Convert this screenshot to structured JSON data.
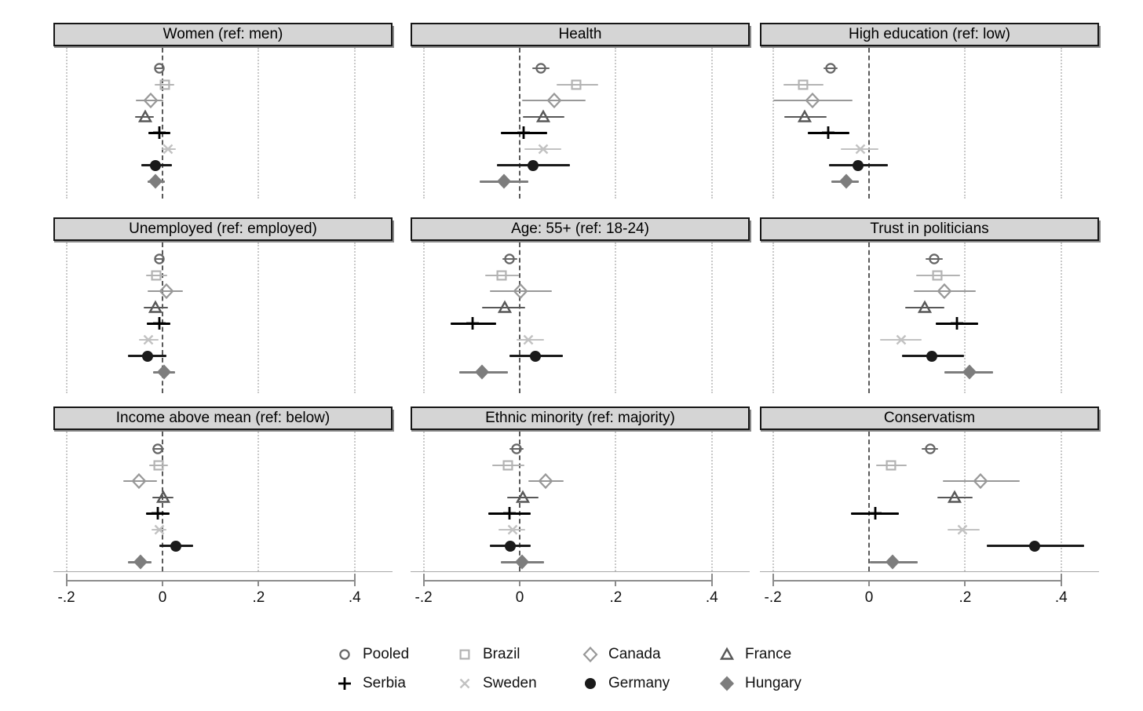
{
  "chart_data": {
    "type": "scatter",
    "subtype": "forest-coefficient-plot-small-multiples",
    "description": "3x3 grid of coefficient plots with point estimates and confidence intervals for 8 samples",
    "x_axis": {
      "tick_values": [
        -0.2,
        0,
        0.2,
        0.4
      ],
      "tick_labels": [
        "-.2",
        "0",
        ".2",
        ".4"
      ],
      "range": [
        -0.225,
        0.48
      ],
      "zero_reference_line": "dashed",
      "gridlines_at": [
        -0.2,
        0.2,
        0.4
      ],
      "gridline_style": "dotted"
    },
    "series": [
      {
        "name": "Pooled",
        "marker": "circle-open",
        "color": "#666666",
        "line_width": 2
      },
      {
        "name": "Brazil",
        "marker": "square-open",
        "color": "#b3b3b3",
        "line_width": 2
      },
      {
        "name": "Canada",
        "marker": "diamond-open",
        "color": "#989898",
        "line_width": 2
      },
      {
        "name": "France",
        "marker": "triangle-open",
        "color": "#585858",
        "line_width": 2.5
      },
      {
        "name": "Serbia",
        "marker": "plus",
        "color": "#000000",
        "line_width": 3
      },
      {
        "name": "Sweden",
        "marker": "x",
        "color": "#c2c2c2",
        "line_width": 2
      },
      {
        "name": "Germany",
        "marker": "circle-filled",
        "color": "#1a1a1a",
        "line_width": 3
      },
      {
        "name": "Hungary",
        "marker": "diamond-filled",
        "color": "#7d7d7d",
        "line_width": 3
      }
    ],
    "value_format": "[estimate, ci_low, ci_high]",
    "panels": [
      {
        "title": "Women (ref: men)",
        "values": [
          [
            -0.005,
            -0.013,
            0.004
          ],
          [
            0.007,
            -0.015,
            0.026
          ],
          [
            -0.023,
            -0.054,
            0.003
          ],
          [
            -0.034,
            -0.055,
            -0.016
          ],
          [
            -0.005,
            -0.028,
            0.018
          ],
          [
            0.013,
            0.0,
            0.03
          ],
          [
            -0.013,
            -0.042,
            0.022
          ],
          [
            -0.013,
            -0.03,
            0.006
          ]
        ]
      },
      {
        "title": "Health",
        "values": [
          [
            0.045,
            0.027,
            0.063
          ],
          [
            0.12,
            0.078,
            0.165
          ],
          [
            0.073,
            0.007,
            0.139
          ],
          [
            0.051,
            0.008,
            0.094
          ],
          [
            0.01,
            -0.038,
            0.059
          ],
          [
            0.051,
            0.012,
            0.089
          ],
          [
            0.03,
            -0.046,
            0.106
          ],
          [
            -0.031,
            -0.081,
            0.02
          ]
        ]
      },
      {
        "title": "High education (ref: low)",
        "values": [
          [
            -0.079,
            -0.093,
            -0.064
          ],
          [
            -0.136,
            -0.177,
            -0.093
          ],
          [
            -0.116,
            -0.197,
            -0.033
          ],
          [
            -0.133,
            -0.175,
            -0.087
          ],
          [
            -0.084,
            -0.126,
            -0.039
          ],
          [
            -0.016,
            -0.057,
            0.021
          ],
          [
            -0.021,
            -0.082,
            0.041
          ],
          [
            -0.046,
            -0.077,
            -0.02
          ]
        ]
      },
      {
        "title": "Unemployed (ref: employed)",
        "values": [
          [
            -0.005,
            -0.015,
            0.005
          ],
          [
            -0.011,
            -0.033,
            0.011
          ],
          [
            0.01,
            -0.029,
            0.044
          ],
          [
            -0.013,
            -0.037,
            0.013
          ],
          [
            -0.005,
            -0.031,
            0.018
          ],
          [
            -0.028,
            -0.047,
            -0.007
          ],
          [
            -0.029,
            -0.07,
            0.01
          ],
          [
            0.005,
            -0.018,
            0.028
          ]
        ]
      },
      {
        "title": "Age: 55+ (ref: 18-24)",
        "values": [
          [
            -0.02,
            -0.035,
            -0.003
          ],
          [
            -0.036,
            -0.071,
            0.0
          ],
          [
            0.003,
            -0.06,
            0.069
          ],
          [
            -0.03,
            -0.076,
            0.013
          ],
          [
            -0.096,
            -0.142,
            -0.048
          ],
          [
            0.02,
            -0.005,
            0.053
          ],
          [
            0.035,
            -0.02,
            0.091
          ],
          [
            -0.076,
            -0.124,
            -0.023
          ]
        ]
      },
      {
        "title": "Trust in politicians",
        "values": [
          [
            0.137,
            0.12,
            0.156
          ],
          [
            0.143,
            0.099,
            0.192
          ],
          [
            0.159,
            0.094,
            0.224
          ],
          [
            0.117,
            0.076,
            0.159
          ],
          [
            0.184,
            0.141,
            0.229
          ],
          [
            0.068,
            0.024,
            0.111
          ],
          [
            0.133,
            0.07,
            0.2
          ],
          [
            0.21,
            0.158,
            0.26
          ]
        ]
      },
      {
        "title": "Income above mean (ref: below)",
        "values": [
          [
            -0.008,
            -0.02,
            0.005
          ],
          [
            -0.007,
            -0.026,
            0.013
          ],
          [
            -0.047,
            -0.08,
            -0.01
          ],
          [
            0.003,
            -0.02,
            0.024
          ],
          [
            -0.008,
            -0.033,
            0.016
          ],
          [
            -0.005,
            -0.021,
            0.01
          ],
          [
            0.029,
            -0.005,
            0.065
          ],
          [
            -0.044,
            -0.07,
            -0.021
          ]
        ]
      },
      {
        "title": "Ethnic minority (ref: majority)",
        "values": [
          [
            -0.005,
            -0.02,
            0.01
          ],
          [
            -0.023,
            -0.056,
            0.012
          ],
          [
            0.056,
            0.02,
            0.093
          ],
          [
            0.008,
            -0.025,
            0.041
          ],
          [
            -0.02,
            -0.063,
            0.025
          ],
          [
            -0.013,
            -0.043,
            0.013
          ],
          [
            -0.018,
            -0.06,
            0.025
          ],
          [
            0.007,
            -0.038,
            0.053
          ]
        ]
      },
      {
        "title": "Conservatism",
        "values": [
          [
            0.129,
            0.111,
            0.145
          ],
          [
            0.047,
            0.016,
            0.08
          ],
          [
            0.234,
            0.155,
            0.315
          ],
          [
            0.18,
            0.144,
            0.217
          ],
          [
            0.015,
            -0.036,
            0.064
          ],
          [
            0.196,
            0.165,
            0.232
          ],
          [
            0.346,
            0.247,
            0.449
          ],
          [
            0.051,
            0.003,
            0.103
          ]
        ]
      },
      {
        "title_note": "panels are read left-to-right, top-to-bottom"
      }
    ],
    "legend": {
      "position": "bottom-center",
      "rows": [
        [
          "Pooled",
          "Brazil",
          "Canada",
          "France"
        ],
        [
          "Serbia",
          "Sweden",
          "Germany",
          "Hungary"
        ]
      ]
    }
  }
}
